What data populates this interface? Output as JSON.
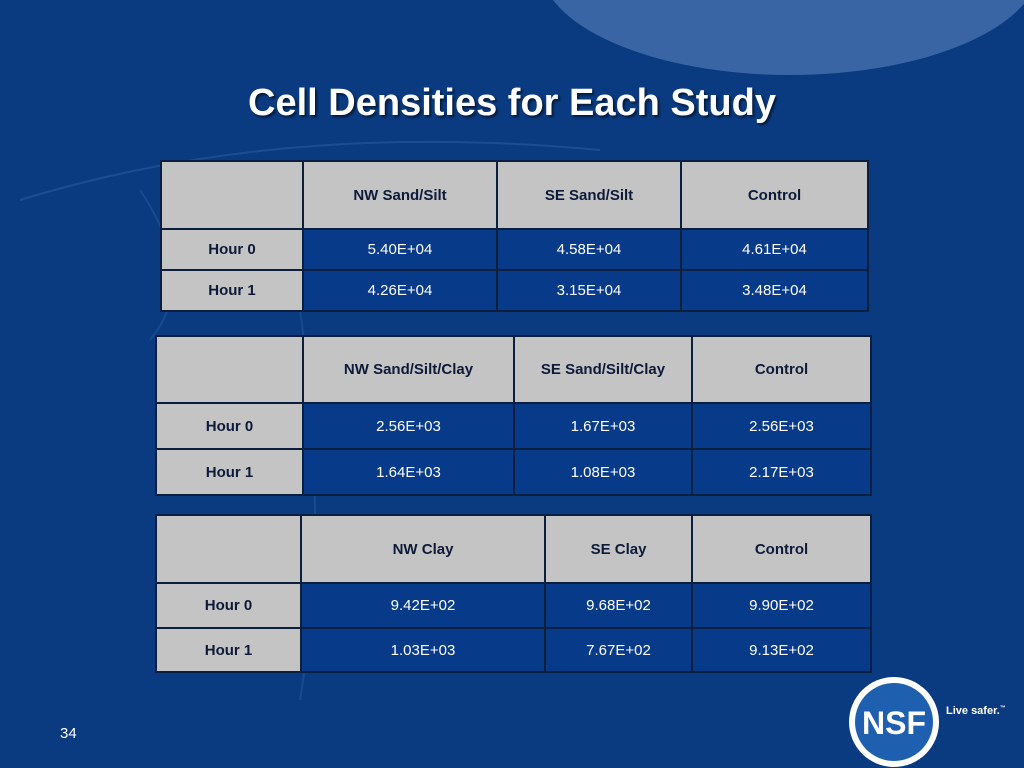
{
  "slide": {
    "title": "Cell Densities for Each Study",
    "page_number": "34",
    "tagline": "Live safer.",
    "tagline_mark": "™",
    "logo_text": "NSF"
  },
  "tables": [
    {
      "headers": [
        "",
        "NW Sand/Silt",
        "SE Sand/Silt",
        "Control"
      ],
      "rows": [
        {
          "label": "Hour 0",
          "values": [
            "5.40E+04",
            "4.58E+04",
            "4.61E+04"
          ]
        },
        {
          "label": "Hour 1",
          "values": [
            "4.26E+04",
            "3.15E+04",
            "3.48E+04"
          ]
        }
      ]
    },
    {
      "headers": [
        "",
        "NW Sand/Silt/Clay",
        "SE Sand/Silt/Clay",
        "Control"
      ],
      "rows": [
        {
          "label": "Hour 0",
          "values": [
            "2.56E+03",
            "1.67E+03",
            "2.56E+03"
          ]
        },
        {
          "label": "Hour 1",
          "values": [
            "1.64E+03",
            "1.08E+03",
            "2.17E+03"
          ]
        }
      ]
    },
    {
      "headers": [
        "",
        "NW Clay",
        "SE Clay",
        "Control"
      ],
      "rows": [
        {
          "label": "Hour 0",
          "values": [
            "9.42E+02",
            "9.68E+02",
            "9.90E+02"
          ]
        },
        {
          "label": "Hour 1",
          "values": [
            "1.03E+03",
            "7.67E+02",
            "9.13E+02"
          ]
        }
      ]
    }
  ],
  "colors": {
    "background": "#0a3a80",
    "header_cell": "#c4c4c4",
    "value_cell": "#083a8a",
    "logo_blue": "#1f5fb0"
  }
}
